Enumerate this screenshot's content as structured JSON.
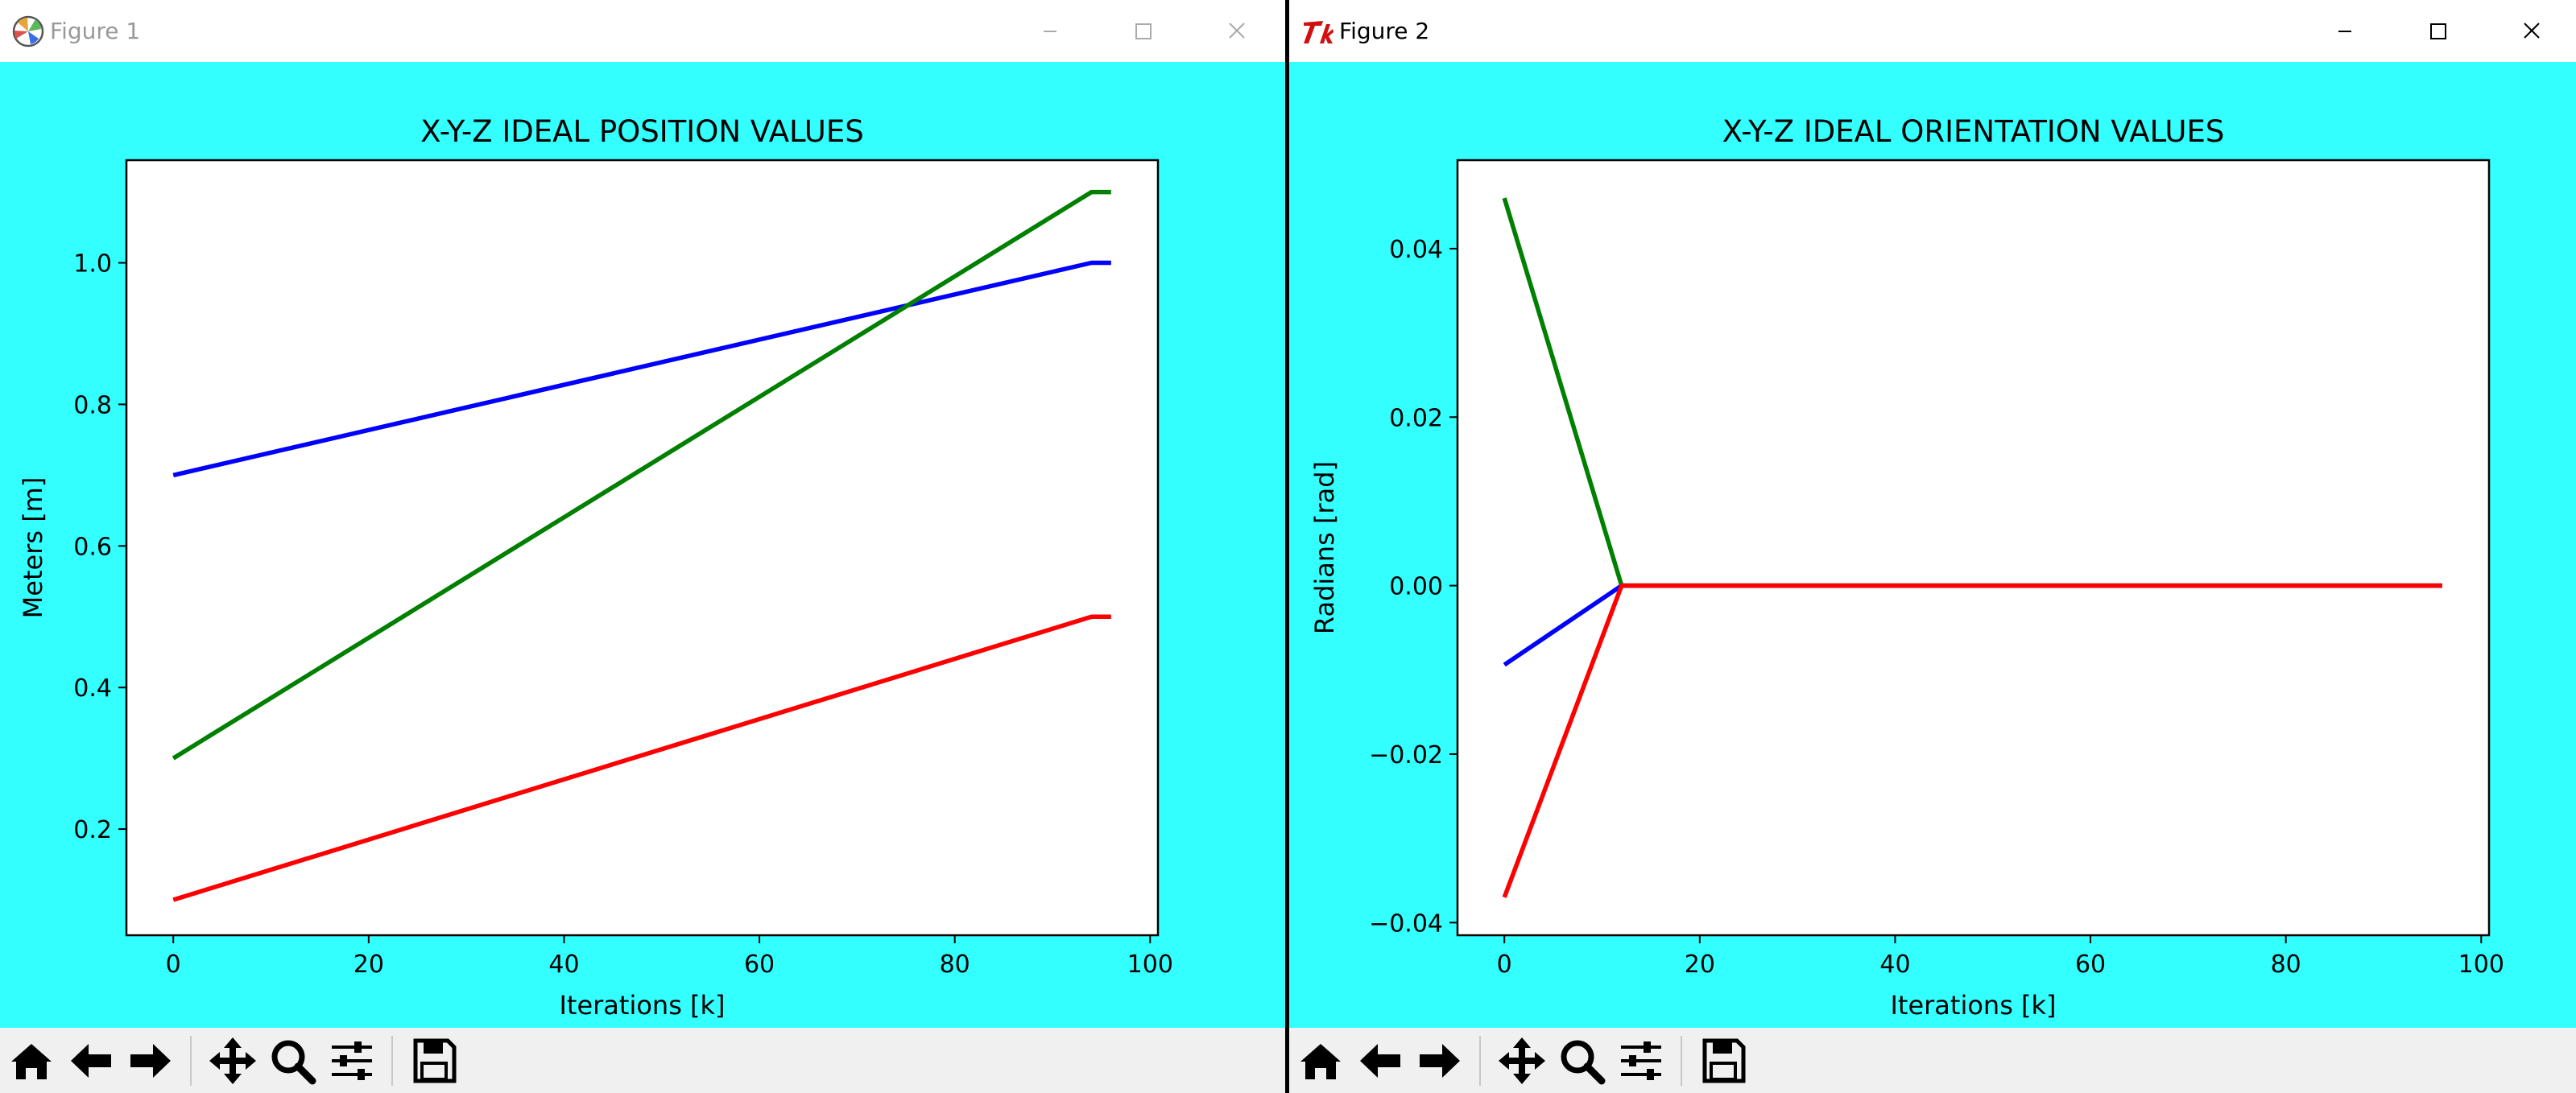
{
  "figure1": {
    "window_title": "Figure 1",
    "chart_data": {
      "type": "line",
      "title": "X-Y-Z IDEAL POSITION VALUES",
      "xlabel": "Iterations [k]",
      "ylabel": "Meters [m]",
      "xlim": [
        -4.8,
        100.8
      ],
      "ylim": [
        0.05,
        1.145
      ],
      "xticks": [
        0,
        20,
        40,
        60,
        80,
        100
      ],
      "yticks": [
        0.2,
        0.4,
        0.6,
        0.8,
        1.0
      ],
      "ytick_labels": [
        "0.2",
        "0.4",
        "0.6",
        "0.8",
        "1.0"
      ],
      "series": [
        {
          "color": "#0000ff",
          "x": [
            0,
            94,
            96
          ],
          "y": [
            0.7,
            1.0,
            1.0
          ]
        },
        {
          "color": "#008000",
          "x": [
            0,
            94,
            96
          ],
          "y": [
            0.3,
            1.1,
            1.1
          ]
        },
        {
          "color": "#ff0000",
          "x": [
            0,
            94,
            96
          ],
          "y": [
            0.1,
            0.5,
            0.5
          ]
        }
      ]
    }
  },
  "figure2": {
    "window_title": "Figure 2",
    "chart_data": {
      "type": "line",
      "title": "X-Y-Z IDEAL ORIENTATION VALUES",
      "xlabel": "Iterations [k]",
      "ylabel": "Radians [rad]",
      "xlim": [
        -4.8,
        100.8
      ],
      "ylim": [
        -0.0415,
        0.0505
      ],
      "xticks": [
        0,
        20,
        40,
        60,
        80,
        100
      ],
      "yticks": [
        -0.04,
        -0.02,
        0.0,
        0.02,
        0.04
      ],
      "ytick_labels": [
        "−0.04",
        "−0.02",
        "0.00",
        "0.02",
        "0.04"
      ],
      "series": [
        {
          "color": "#008000",
          "x": [
            0,
            12,
            96
          ],
          "y": [
            0.046,
            0.0,
            0.0
          ]
        },
        {
          "color": "#0000ff",
          "x": [
            0,
            12,
            96
          ],
          "y": [
            -0.0094,
            0.0,
            0.0
          ]
        },
        {
          "color": "#ff0000",
          "x": [
            0,
            12,
            96
          ],
          "y": [
            -0.037,
            0.0,
            0.0
          ]
        }
      ]
    }
  },
  "toolbar": {
    "buttons": [
      {
        "name": "home-button",
        "icon": "home-icon"
      },
      {
        "name": "back-button",
        "icon": "arrow-left-icon"
      },
      {
        "name": "forward-button",
        "icon": "arrow-right-icon"
      },
      {
        "name": "pan-button",
        "icon": "move-icon"
      },
      {
        "name": "zoom-button",
        "icon": "zoom-icon"
      },
      {
        "name": "subplots-button",
        "icon": "sliders-icon"
      },
      {
        "name": "save-button",
        "icon": "save-icon"
      }
    ]
  },
  "colors": {
    "figure_bg": "#33ffff",
    "axes_bg": "#ffffff",
    "toolbar_bg": "#f0f0f0"
  }
}
